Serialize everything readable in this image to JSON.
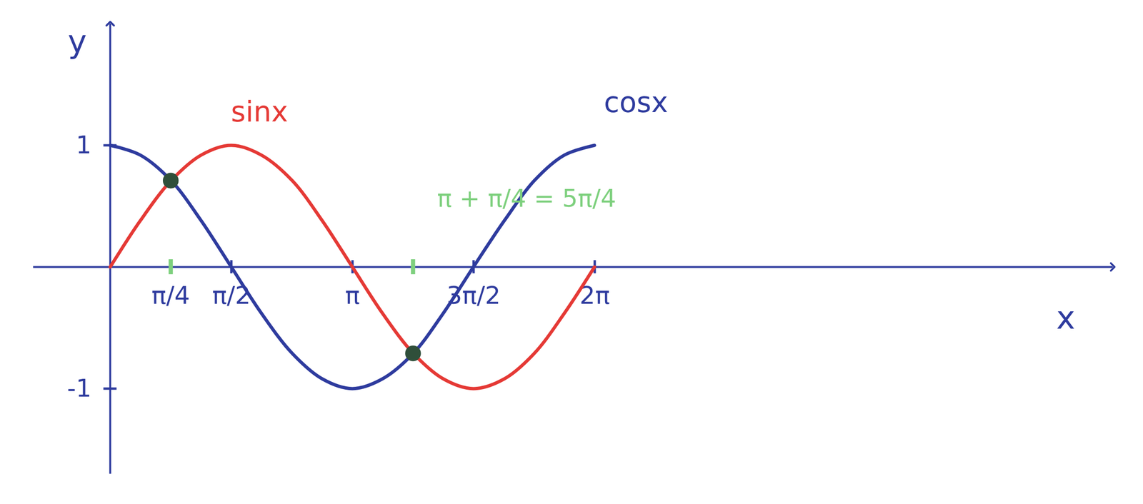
{
  "chart_data": {
    "type": "line",
    "xlabel": "x",
    "ylabel": "y",
    "xlim": [
      -1,
      13
    ],
    "ylim": [
      -1.7,
      2
    ],
    "xticks": [
      {
        "value": 0.785,
        "label": "π/4"
      },
      {
        "value": 1.571,
        "label": "π/2"
      },
      {
        "value": 3.142,
        "label": "π"
      },
      {
        "value": 4.712,
        "label": "3π/2"
      },
      {
        "value": 6.283,
        "label": "2π"
      }
    ],
    "yticks": [
      -1,
      1
    ],
    "x": [
      0,
      0.39,
      0.79,
      1.18,
      1.57,
      1.96,
      2.36,
      2.75,
      3.14,
      3.53,
      3.93,
      4.32,
      4.71,
      5.11,
      5.5,
      5.89,
      6.28
    ],
    "series": [
      {
        "name": "sinx",
        "color": "#e53935",
        "values": [
          0,
          0.38,
          0.71,
          0.92,
          1,
          0.92,
          0.71,
          0.38,
          0,
          -0.38,
          -0.71,
          -0.92,
          -1,
          -0.92,
          -0.71,
          -0.38,
          0
        ]
      },
      {
        "name": "cosx",
        "color": "#2e3b9e",
        "values": [
          1,
          0.92,
          0.71,
          0.38,
          0,
          -0.38,
          -0.71,
          -0.92,
          -1,
          -0.92,
          -0.71,
          -0.38,
          0,
          0.38,
          0.71,
          0.92,
          1
        ]
      }
    ],
    "intersections": {
      "x": [
        0.785,
        3.927
      ],
      "y": [
        0.71,
        -0.71
      ],
      "color": "#2f4f3a"
    },
    "annotations": [
      {
        "text": "π + π/4 = 5π/4",
        "x": 5.4,
        "y": 0.56,
        "color": "#7ed07e"
      }
    ]
  }
}
